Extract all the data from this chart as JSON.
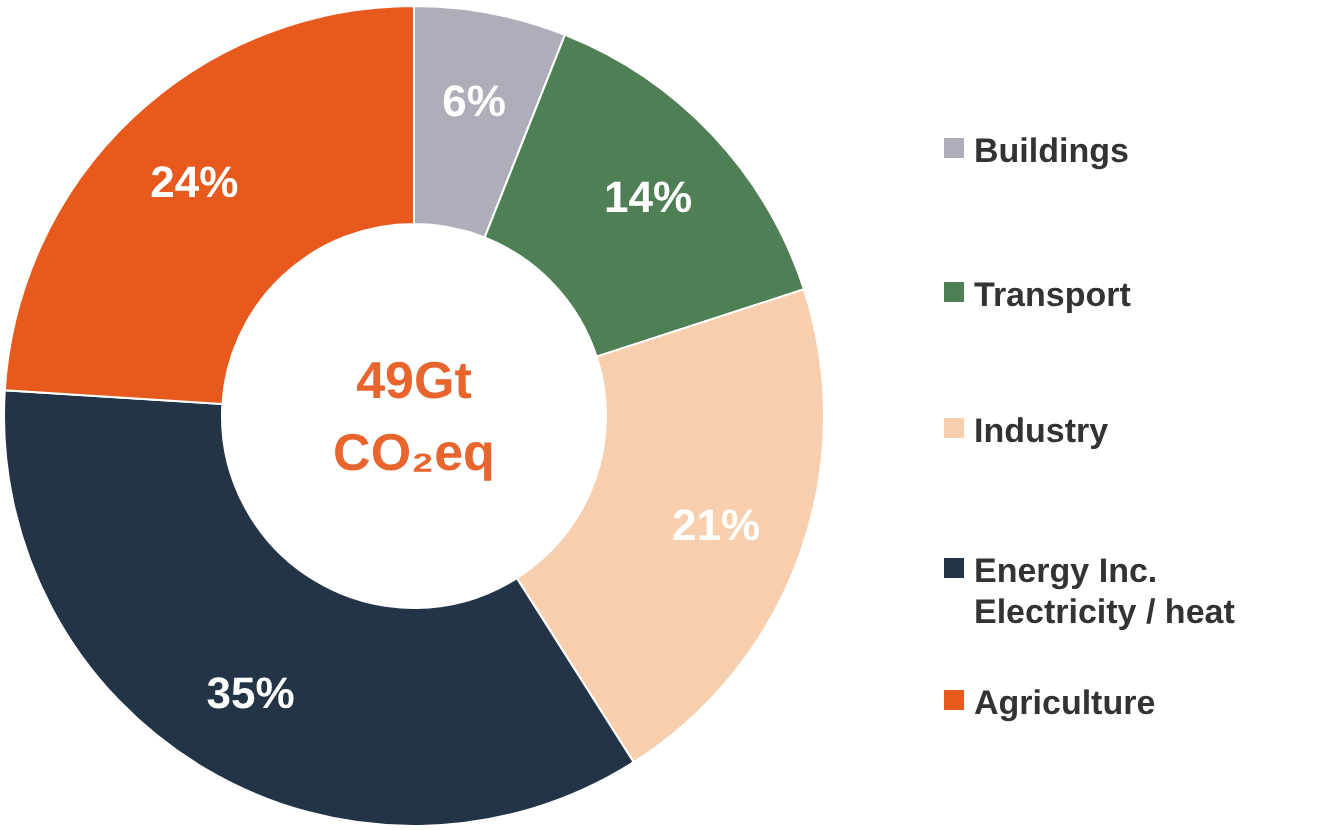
{
  "chart_data": {
    "type": "donut",
    "categories": [
      "Buildings",
      "Transport",
      "Industry",
      "Energy Inc.\nElectricity / heat",
      "Agriculture"
    ],
    "values": [
      6,
      14,
      21,
      35,
      24
    ],
    "colors": [
      "#aeaebb",
      "#4f7f55",
      "#f8cfae",
      "#233447",
      "#e8591e"
    ],
    "value_labels": [
      "6%",
      "14%",
      "21%",
      "35%",
      "24%"
    ],
    "annotations": [
      "49Gt",
      "CO₂eq"
    ],
    "legend": "right"
  }
}
